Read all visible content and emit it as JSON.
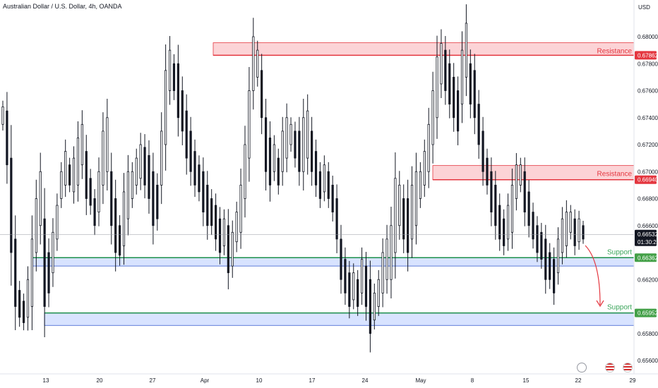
{
  "header": {
    "symbol_title": "Australian Dollar / U.S. Dollar, 4h, OANDA",
    "currency": "USD"
  },
  "chart_data": {
    "type": "candlestick",
    "ylim": [
      0.6552,
      0.6815
    ],
    "y_ticks": [
      0.68,
      0.678,
      0.676,
      0.674,
      0.672,
      0.67,
      0.668,
      0.666,
      0.664,
      0.662,
      0.66,
      0.658,
      0.656
    ],
    "x_ticks": [
      "13",
      "20",
      "27",
      "Apr",
      "10",
      "17",
      "24",
      "May",
      "8",
      "15",
      "22",
      "29"
    ],
    "last_price": 0.66532,
    "countdown": "01:30:21",
    "zones": [
      {
        "label": "Resistance",
        "value": 0.67862,
        "low": 0.67862,
        "high": 0.67955,
        "type": "resistance"
      },
      {
        "label": "Resistance",
        "value": 0.6694,
        "low": 0.6694,
        "high": 0.67045,
        "type": "resistance"
      },
      {
        "label": "Support",
        "value": 0.66362,
        "low": 0.663,
        "high": 0.66362,
        "type": "support"
      },
      {
        "label": "Support",
        "value": 0.65952,
        "low": 0.6586,
        "high": 0.65952,
        "type": "support"
      }
    ],
    "path_points": [
      [
        0.6735,
        0.6748
      ],
      [
        0.6705,
        0.6745
      ],
      [
        0.664,
        0.671
      ],
      [
        0.66,
        0.665
      ],
      [
        0.6592,
        0.6612
      ],
      [
        0.6588,
        0.6604
      ],
      [
        0.6592,
        0.662
      ],
      [
        0.66,
        0.665
      ],
      [
        0.664,
        0.668
      ],
      [
        0.666,
        0.67
      ],
      [
        0.66,
        0.6665
      ],
      [
        0.661,
        0.664
      ],
      [
        0.6625,
        0.6655
      ],
      [
        0.665,
        0.6675
      ],
      [
        0.668,
        0.67
      ],
      [
        0.669,
        0.6715
      ],
      [
        0.669,
        0.6705
      ],
      [
        0.6685,
        0.671
      ],
      [
        0.669,
        0.6725
      ],
      [
        0.6705,
        0.6735
      ],
      [
        0.668,
        0.6715
      ],
      [
        0.6675,
        0.6695
      ],
      [
        0.666,
        0.668
      ],
      [
        0.667,
        0.67
      ],
      [
        0.669,
        0.673
      ],
      [
        0.67,
        0.674
      ],
      [
        0.666,
        0.67
      ],
      [
        0.664,
        0.668
      ],
      [
        0.6638,
        0.666
      ],
      [
        0.6645,
        0.6685
      ],
      [
        0.6665,
        0.67
      ],
      [
        0.668,
        0.67
      ],
      [
        0.669,
        0.671
      ],
      [
        0.6695,
        0.672
      ],
      [
        0.669,
        0.6718
      ],
      [
        0.668,
        0.6712
      ],
      [
        0.666,
        0.67
      ],
      [
        0.6665,
        0.669
      ],
      [
        0.669,
        0.673
      ],
      [
        0.672,
        0.6775
      ],
      [
        0.676,
        0.679
      ],
      [
        0.676,
        0.678
      ],
      [
        0.674,
        0.678
      ],
      [
        0.673,
        0.676
      ],
      [
        0.671,
        0.6745
      ],
      [
        0.67,
        0.673
      ],
      [
        0.669,
        0.6715
      ],
      [
        0.6685,
        0.6705
      ],
      [
        0.667,
        0.67
      ],
      [
        0.666,
        0.669
      ],
      [
        0.666,
        0.668
      ],
      [
        0.665,
        0.6675
      ],
      [
        0.664,
        0.6665
      ],
      [
        0.6645,
        0.6665
      ],
      [
        0.6625,
        0.666
      ],
      [
        0.663,
        0.6655
      ],
      [
        0.6648,
        0.667
      ],
      [
        0.6655,
        0.669
      ],
      [
        0.668,
        0.672
      ],
      [
        0.671,
        0.676
      ],
      [
        0.676,
        0.68
      ],
      [
        0.677,
        0.679
      ],
      [
        0.674,
        0.6775
      ],
      [
        0.67,
        0.674
      ],
      [
        0.669,
        0.6725
      ],
      [
        0.67,
        0.672
      ],
      [
        0.669,
        0.671
      ],
      [
        0.67,
        0.673
      ],
      [
        0.671,
        0.674
      ],
      [
        0.672,
        0.6735
      ],
      [
        0.671,
        0.673
      ],
      [
        0.67,
        0.673
      ],
      [
        0.67,
        0.674
      ],
      [
        0.671,
        0.6745
      ],
      [
        0.67,
        0.673
      ],
      [
        0.669,
        0.6715
      ],
      [
        0.668,
        0.67
      ],
      [
        0.6685,
        0.6705
      ],
      [
        0.668,
        0.67
      ],
      [
        0.667,
        0.669
      ],
      [
        0.665,
        0.668
      ],
      [
        0.662,
        0.665
      ],
      [
        0.661,
        0.6635
      ],
      [
        0.66,
        0.6625
      ],
      [
        0.6605,
        0.6625
      ],
      [
        0.66,
        0.662
      ],
      [
        0.661,
        0.6635
      ],
      [
        0.66,
        0.663
      ],
      [
        0.658,
        0.662
      ],
      [
        0.659,
        0.661
      ],
      [
        0.66,
        0.662
      ],
      [
        0.661,
        0.664
      ],
      [
        0.662,
        0.665
      ],
      [
        0.662,
        0.666
      ],
      [
        0.664,
        0.6695
      ],
      [
        0.666,
        0.669
      ],
      [
        0.665,
        0.668
      ],
      [
        0.664,
        0.668
      ],
      [
        0.665,
        0.669
      ],
      [
        0.666,
        0.67
      ],
      [
        0.668,
        0.67
      ],
      [
        0.669,
        0.6715
      ],
      [
        0.67,
        0.6735
      ],
      [
        0.672,
        0.676
      ],
      [
        0.674,
        0.6785
      ],
      [
        0.6765,
        0.6795
      ],
      [
        0.676,
        0.679
      ],
      [
        0.675,
        0.678
      ],
      [
        0.674,
        0.677
      ],
      [
        0.673,
        0.676
      ],
      [
        0.675,
        0.679
      ],
      [
        0.677,
        0.681
      ],
      [
        0.675,
        0.678
      ],
      [
        0.674,
        0.6775
      ],
      [
        0.672,
        0.675
      ],
      [
        0.67,
        0.673
      ],
      [
        0.669,
        0.671
      ],
      [
        0.667,
        0.67
      ],
      [
        0.666,
        0.669
      ],
      [
        0.665,
        0.6675
      ],
      [
        0.6645,
        0.6665
      ],
      [
        0.665,
        0.6675
      ],
      [
        0.6655,
        0.669
      ],
      [
        0.668,
        0.6705
      ],
      [
        0.669,
        0.6705
      ],
      [
        0.667,
        0.67
      ],
      [
        0.666,
        0.6685
      ],
      [
        0.665,
        0.667
      ],
      [
        0.664,
        0.666
      ],
      [
        0.6635,
        0.6655
      ],
      [
        0.662,
        0.665
      ],
      [
        0.662,
        0.664
      ],
      [
        0.661,
        0.6635
      ],
      [
        0.6625,
        0.665
      ],
      [
        0.664,
        0.6665
      ],
      [
        0.6645,
        0.667
      ],
      [
        0.6655,
        0.667
      ],
      [
        0.6645,
        0.6665
      ],
      [
        0.6648,
        0.6665
      ],
      [
        0.665,
        0.666
      ]
    ]
  }
}
